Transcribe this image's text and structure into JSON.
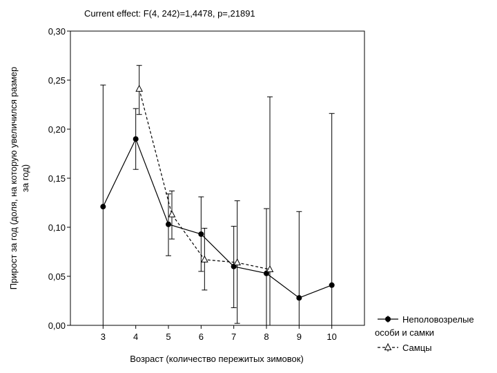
{
  "chart_data": {
    "type": "line",
    "title": "Current effect: F(4, 242)=1,4478, p=,21891",
    "xlabel": "Возраст (количество пережитых зимовок)",
    "ylabel_lines": [
      "Прирост за год (доля, на которую увеличился размер",
      "за год)"
    ],
    "categories": [
      "3",
      "4",
      "5",
      "6",
      "7",
      "8",
      "9",
      "10"
    ],
    "xlim": [
      2,
      11
    ],
    "ylim": [
      0,
      0.3
    ],
    "yticks": [
      "0,00",
      "0,05",
      "0,10",
      "0,15",
      "0,20",
      "0,25",
      "0,30"
    ],
    "series": [
      {
        "legend_lines": [
          "Неполовозрелые",
          "особи и самки"
        ],
        "style": "solid",
        "marker": "filled-circle",
        "points": [
          {
            "x": 3,
            "y": 0.121,
            "lo": 0.0,
            "hi": 0.245
          },
          {
            "x": 4,
            "y": 0.19,
            "lo": 0.159,
            "hi": 0.221
          },
          {
            "x": 5,
            "y": 0.103,
            "lo": 0.071,
            "hi": 0.134
          },
          {
            "x": 6,
            "y": 0.093,
            "lo": 0.055,
            "hi": 0.131
          },
          {
            "x": 7,
            "y": 0.06,
            "lo": 0.018,
            "hi": 0.101
          },
          {
            "x": 8,
            "y": 0.053,
            "lo": 0.0,
            "hi": 0.119
          },
          {
            "x": 9,
            "y": 0.028,
            "lo": 0.0,
            "hi": 0.116
          },
          {
            "x": 10,
            "y": 0.041,
            "lo": 0.0,
            "hi": 0.216
          }
        ]
      },
      {
        "name": "Самцы",
        "style": "dashed",
        "marker": "open-triangle",
        "points": [
          {
            "x": 4,
            "y": 0.241,
            "lo": 0.215,
            "hi": 0.265
          },
          {
            "x": 5,
            "y": 0.113,
            "lo": 0.088,
            "hi": 0.137
          },
          {
            "x": 6,
            "y": 0.067,
            "lo": 0.036,
            "hi": 0.099
          },
          {
            "x": 7,
            "y": 0.064,
            "lo": 0.002,
            "hi": 0.127
          },
          {
            "x": 8,
            "y": 0.057,
            "lo": 0.0,
            "hi": 0.233
          }
        ]
      }
    ],
    "grid": false,
    "legend_position": "bottom-right"
  }
}
